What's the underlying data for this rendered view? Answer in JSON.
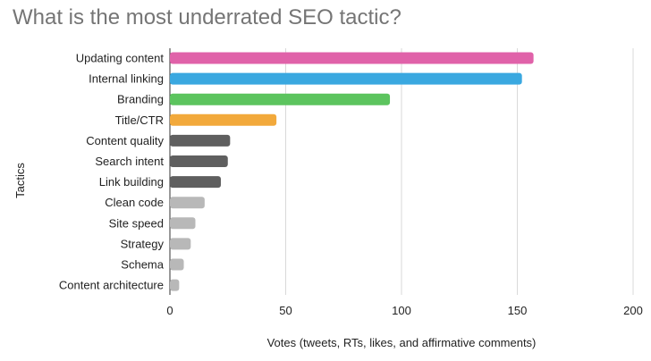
{
  "chart_data": {
    "type": "bar",
    "orientation": "horizontal",
    "title": "What is the most underrated SEO tactic?",
    "xlabel": "Votes (tweets, RTs, likes, and affirmative comments)",
    "ylabel": "Tactics",
    "xlim": [
      0,
      200
    ],
    "xticks": [
      0,
      50,
      100,
      150,
      200
    ],
    "grid": true,
    "legend": "none",
    "categories": [
      "Updating content",
      "Internal linking",
      "Branding",
      "Title/CTR",
      "Content quality",
      "Search intent",
      "Link building",
      "Clean code",
      "Site speed",
      "Strategy",
      "Schema",
      "Content architecture"
    ],
    "values": [
      157,
      152,
      95,
      46,
      26,
      25,
      22,
      15,
      11,
      9,
      6,
      4
    ],
    "colors": [
      "#e062a9",
      "#3aa8e0",
      "#5cc45e",
      "#f2a93b",
      "#5f5f5f",
      "#5f5f5f",
      "#5f5f5f",
      "#b8b8b8",
      "#b8b8b8",
      "#b8b8b8",
      "#b8b8b8",
      "#b8b8b8"
    ]
  }
}
